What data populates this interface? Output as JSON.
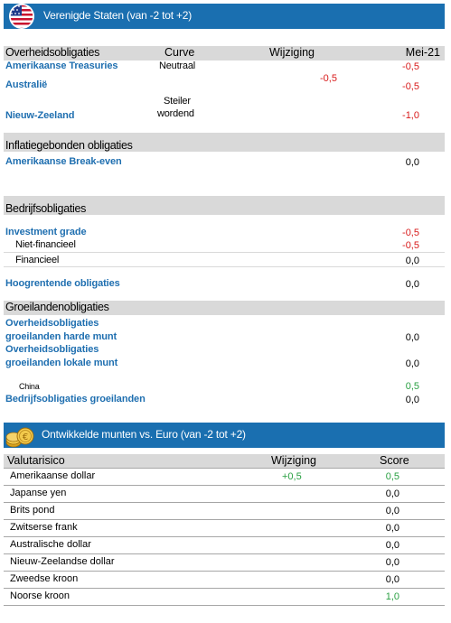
{
  "us_header": {
    "title": "Verenigde Staten (van -2 tot +2)"
  },
  "govt": {
    "title": "Overheidsobligaties",
    "col_curve": "Curve",
    "col_change": "Wijziging",
    "col_month": "Mei-21",
    "rows": [
      {
        "label": "Amerikaanse Treasuries",
        "curve": "Neutraal",
        "value": "-0,5"
      },
      {
        "label": "Australië",
        "value": "-0,5"
      },
      {
        "label": "Nieuw-Zeeland",
        "curve_line1": "Steiler",
        "curve_line2": "wordend",
        "value": "-1,0"
      }
    ],
    "change_value": "-0,5"
  },
  "inflation": {
    "title": "Inflatiegebonden obligaties",
    "rows": [
      {
        "label": "Amerikaanse Break-even",
        "value": "0,0"
      }
    ]
  },
  "corporate": {
    "title": "Bedrijfsobligaties",
    "rows": [
      {
        "label": "Investment grade",
        "value": "-0,5"
      },
      {
        "label": "Niet-financieel",
        "value": "-0,5"
      },
      {
        "label": "Financieel",
        "value": "0,0"
      },
      {
        "label": "Hoogrentende obligaties",
        "value": "0,0"
      }
    ]
  },
  "emerging": {
    "title": "Groeilandenobligaties",
    "rows": [
      {
        "label_line1": "Overheidsobligaties",
        "label_line2": "groeilanden harde munt",
        "value": "0,0"
      },
      {
        "label_line1": "Overheidsobligaties",
        "label_line2": "groeilanden lokale munt",
        "value": "0,0"
      },
      {
        "label": "China",
        "value": "0,5"
      },
      {
        "label": "Bedrijfsobligaties groeilanden",
        "value": "0,0"
      }
    ]
  },
  "fx_header": {
    "title": "Ontwikkelde munten vs. Euro (van -2 tot +2)"
  },
  "fx": {
    "col_risk": "Valutarisico",
    "col_change": "Wijziging",
    "col_score": "Score",
    "rows": [
      {
        "name": "Amerikaanse dollar",
        "change": "+0,5",
        "score": "0,5"
      },
      {
        "name": "Japanse yen",
        "change": "",
        "score": "0,0"
      },
      {
        "name": "Brits pond",
        "change": "",
        "score": "0,0"
      },
      {
        "name": "Zwitserse frank",
        "change": "",
        "score": "0,0"
      },
      {
        "name": "Australische dollar",
        "change": "",
        "score": "0,0"
      },
      {
        "name": "Nieuw-Zeelandse dollar",
        "change": "",
        "score": "0,0"
      },
      {
        "name": "Zweedse kroon",
        "change": "",
        "score": "0,0"
      },
      {
        "name": "Noorse kroon",
        "change": "",
        "score": "1,0"
      }
    ]
  },
  "colors": {
    "header_blue": "#1a6fb0",
    "label_blue": "#1f6fb0",
    "negative": "#d81b1b",
    "positive": "#2aa043",
    "section_grey": "#d9d9d9"
  },
  "icons": [
    "us-flag-icon",
    "coins-icon"
  ]
}
